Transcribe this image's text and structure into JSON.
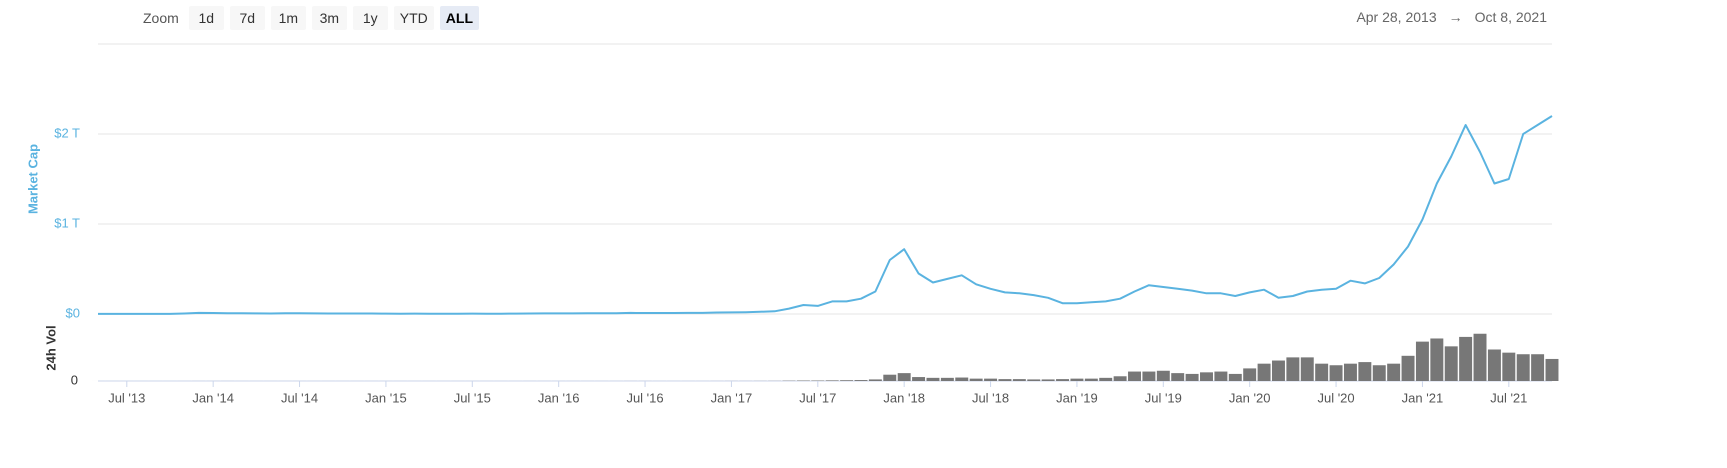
{
  "zoom": {
    "label": "Zoom",
    "buttons": [
      "1d",
      "7d",
      "1m",
      "3m",
      "1y",
      "YTD",
      "ALL"
    ],
    "selected": "ALL"
  },
  "date_range": {
    "start": "Apr 28, 2013",
    "separator": "→",
    "end": "Oct 8, 2021"
  },
  "chart_data": {
    "type": "line",
    "x": [
      "2013-05",
      "2013-06",
      "2013-07",
      "2013-08",
      "2013-09",
      "2013-10",
      "2013-11",
      "2013-12",
      "2014-01",
      "2014-02",
      "2014-03",
      "2014-04",
      "2014-05",
      "2014-06",
      "2014-07",
      "2014-08",
      "2014-09",
      "2014-10",
      "2014-11",
      "2014-12",
      "2015-01",
      "2015-02",
      "2015-03",
      "2015-04",
      "2015-05",
      "2015-06",
      "2015-07",
      "2015-08",
      "2015-09",
      "2015-10",
      "2015-11",
      "2015-12",
      "2016-01",
      "2016-02",
      "2016-03",
      "2016-04",
      "2016-05",
      "2016-06",
      "2016-07",
      "2016-08",
      "2016-09",
      "2016-10",
      "2016-11",
      "2016-12",
      "2017-01",
      "2017-02",
      "2017-03",
      "2017-04",
      "2017-05",
      "2017-06",
      "2017-07",
      "2017-08",
      "2017-09",
      "2017-10",
      "2017-11",
      "2017-12",
      "2018-01",
      "2018-02",
      "2018-03",
      "2018-04",
      "2018-05",
      "2018-06",
      "2018-07",
      "2018-08",
      "2018-09",
      "2018-10",
      "2018-11",
      "2018-12",
      "2019-01",
      "2019-02",
      "2019-03",
      "2019-04",
      "2019-05",
      "2019-06",
      "2019-07",
      "2019-08",
      "2019-09",
      "2019-10",
      "2019-11",
      "2019-12",
      "2020-01",
      "2020-02",
      "2020-03",
      "2020-04",
      "2020-05",
      "2020-06",
      "2020-07",
      "2020-08",
      "2020-09",
      "2020-10",
      "2020-11",
      "2020-12",
      "2021-01",
      "2021-02",
      "2021-03",
      "2021-04",
      "2021-05",
      "2021-06",
      "2021-07",
      "2021-08",
      "2021-09",
      "2021-10"
    ],
    "series": [
      {
        "name": "Market Cap",
        "color": "#5ab3e0",
        "values": [
          0.0015,
          0.0012,
          0.001,
          0.0013,
          0.0016,
          0.002,
          0.006,
          0.012,
          0.011,
          0.009,
          0.008,
          0.007,
          0.006,
          0.008,
          0.008,
          0.007,
          0.006,
          0.005,
          0.005,
          0.005,
          0.004,
          0.0035,
          0.004,
          0.0033,
          0.0033,
          0.0035,
          0.004,
          0.0035,
          0.0035,
          0.004,
          0.005,
          0.007,
          0.007,
          0.007,
          0.008,
          0.008,
          0.009,
          0.012,
          0.011,
          0.011,
          0.011,
          0.012,
          0.013,
          0.017,
          0.018,
          0.02,
          0.025,
          0.03,
          0.06,
          0.1,
          0.09,
          0.14,
          0.14,
          0.17,
          0.25,
          0.6,
          0.72,
          0.45,
          0.35,
          0.39,
          0.43,
          0.33,
          0.28,
          0.24,
          0.23,
          0.21,
          0.18,
          0.12,
          0.12,
          0.13,
          0.14,
          0.17,
          0.25,
          0.32,
          0.3,
          0.28,
          0.26,
          0.23,
          0.23,
          0.2,
          0.24,
          0.27,
          0.18,
          0.2,
          0.25,
          0.27,
          0.28,
          0.37,
          0.34,
          0.4,
          0.55,
          0.75,
          1.05,
          1.45,
          1.75,
          2.1,
          1.8,
          1.45,
          1.5,
          2.0,
          2.1,
          2.2
        ]
      },
      {
        "name": "24h Vol",
        "color": "#777777",
        "axis": "y2",
        "values": [
          0.05,
          0.05,
          0.05,
          0.05,
          0.05,
          0.05,
          0.1,
          0.2,
          0.2,
          0.2,
          0.1,
          0.1,
          0.1,
          0.1,
          0.1,
          0.1,
          0.1,
          0.1,
          0.1,
          0.1,
          0.1,
          0.1,
          0.1,
          0.1,
          0.1,
          0.1,
          0.1,
          0.1,
          0.1,
          0.1,
          0.2,
          0.2,
          0.2,
          0.2,
          0.2,
          0.2,
          0.2,
          0.3,
          0.3,
          0.2,
          0.2,
          0.2,
          0.2,
          0.3,
          0.4,
          0.4,
          0.6,
          0.8,
          2,
          3,
          3,
          4,
          5,
          6,
          10,
          40,
          50,
          25,
          20,
          20,
          22,
          15,
          15,
          12,
          12,
          10,
          10,
          12,
          15,
          15,
          20,
          30,
          60,
          60,
          65,
          50,
          45,
          55,
          60,
          45,
          80,
          110,
          130,
          150,
          150,
          110,
          100,
          110,
          120,
          100,
          110,
          160,
          250,
          270,
          220,
          280,
          300,
          200,
          180,
          170,
          170,
          140
        ]
      }
    ],
    "xlim": [
      "2013-05",
      "2021-10"
    ],
    "xticks": [
      {
        "value": "2013-07",
        "label": "Jul '13"
      },
      {
        "value": "2014-01",
        "label": "Jan '14"
      },
      {
        "value": "2014-07",
        "label": "Jul '14"
      },
      {
        "value": "2015-01",
        "label": "Jan '15"
      },
      {
        "value": "2015-07",
        "label": "Jul '15"
      },
      {
        "value": "2016-01",
        "label": "Jan '16"
      },
      {
        "value": "2016-07",
        "label": "Jul '16"
      },
      {
        "value": "2017-01",
        "label": "Jan '17"
      },
      {
        "value": "2017-07",
        "label": "Jul '17"
      },
      {
        "value": "2018-01",
        "label": "Jan '18"
      },
      {
        "value": "2018-07",
        "label": "Jul '18"
      },
      {
        "value": "2019-01",
        "label": "Jan '19"
      },
      {
        "value": "2019-07",
        "label": "Jul '19"
      },
      {
        "value": "2020-01",
        "label": "Jan '20"
      },
      {
        "value": "2020-07",
        "label": "Jul '20"
      },
      {
        "value": "2021-01",
        "label": "Jan '21"
      },
      {
        "value": "2021-07",
        "label": "Jul '21"
      }
    ],
    "ylim": [
      0,
      3
    ],
    "yticks": [
      {
        "value": 0,
        "label": "$0"
      },
      {
        "value": 1,
        "label": "$1 T"
      },
      {
        "value": 2,
        "label": "$2 T"
      }
    ],
    "y2lim": [
      0,
      400
    ],
    "y2ticks": [
      0
    ],
    "grid": true
  }
}
